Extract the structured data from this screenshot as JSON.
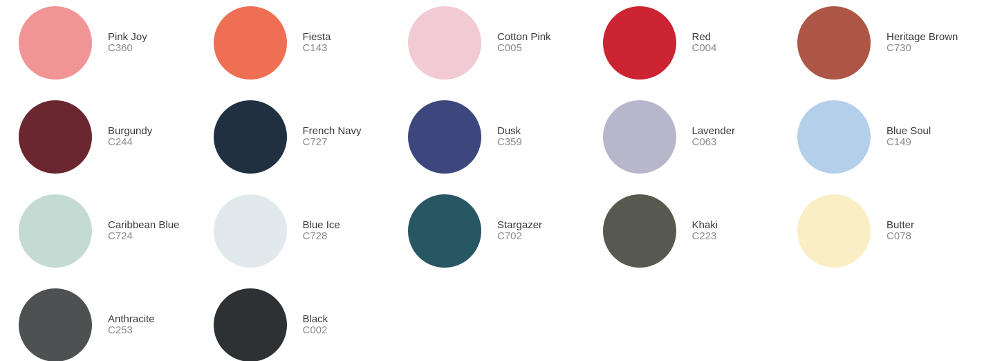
{
  "swatches": [
    {
      "name": "Pink Joy",
      "code": "C360",
      "color": "#F19496"
    },
    {
      "name": "Fiesta",
      "code": "C143",
      "color": "#EF6F55"
    },
    {
      "name": "Cotton Pink",
      "code": "C005",
      "color": "#F2CAD3"
    },
    {
      "name": "Red",
      "code": "C004",
      "color": "#CC2432"
    },
    {
      "name": "Heritage Brown",
      "code": "C730",
      "color": "#AD5645"
    },
    {
      "name": "Burgundy",
      "code": "C244",
      "color": "#6A2730"
    },
    {
      "name": "French Navy",
      "code": "C727",
      "color": "#213041"
    },
    {
      "name": "Dusk",
      "code": "C359",
      "color": "#3D477D"
    },
    {
      "name": "Lavender",
      "code": "C063",
      "color": "#B8B6CB"
    },
    {
      "name": "Blue Soul",
      "code": "C149",
      "color": "#B4CFEA"
    },
    {
      "name": "Caribbean Blue",
      "code": "C724",
      "color": "#C3DBD3"
    },
    {
      "name": "Blue Ice",
      "code": "C728",
      "color": "#E0E9EC"
    },
    {
      "name": "Stargazer",
      "code": "C702",
      "color": "#275763"
    },
    {
      "name": "Khaki",
      "code": "C223",
      "color": "#57584E"
    },
    {
      "name": "Butter",
      "code": "C078",
      "color": "#FAEEC5"
    },
    {
      "name": "Anthracite",
      "code": "C253",
      "color": "#4D5152"
    },
    {
      "name": "Black",
      "code": "C002",
      "color": "#2D3133"
    }
  ]
}
